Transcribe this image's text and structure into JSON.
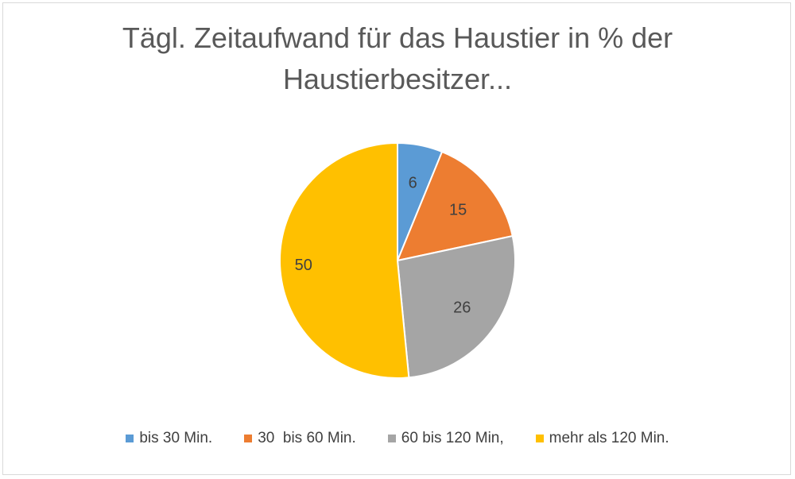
{
  "chart_data": {
    "type": "pie",
    "title_lines": [
      "Tägl. Zeitaufwand für das Haustier in % der",
      "Haustierbesitzer..."
    ],
    "categories": [
      "bis 30 Min.",
      "30  bis 60 Min.",
      "60 bis 120 Min,",
      "mehr als 120 Min."
    ],
    "values": [
      6,
      15,
      26,
      50
    ],
    "data_labels": [
      "6",
      "15",
      "26",
      "50"
    ],
    "colors": [
      "#5B9BD5",
      "#ED7D31",
      "#A5A5A5",
      "#FFC000"
    ],
    "start_angle": "12 o'clock",
    "direction": "clockwise",
    "legend_position": "bottom"
  }
}
